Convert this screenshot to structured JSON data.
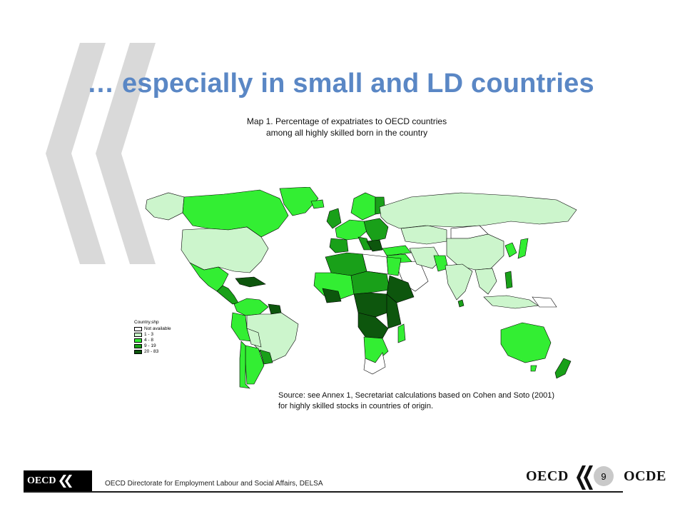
{
  "slide": {
    "title": "… especially in small and LD countries",
    "page_number": "9"
  },
  "map": {
    "title_line1": "Map 1. Percentage of expatriates to OECD countries",
    "title_line2": "among all highly skilled born in the country",
    "legend_title": "Country.shp",
    "legend": [
      {
        "label": "Not available",
        "color": "#ffffff"
      },
      {
        "label": "1 - 3",
        "color": "#ccf5cc"
      },
      {
        "label": "4 - 8",
        "color": "#33ee33"
      },
      {
        "label": "9 - 19",
        "color": "#19a019"
      },
      {
        "label": "20 - 83",
        "color": "#0d560d"
      }
    ],
    "source_line1": "Source: see Annex 1, Secretariat calculations based on Cohen and Soto (2001)",
    "source_line2": "for highly skilled stocks in countries of origin."
  },
  "footer": {
    "org_logo": "OECD",
    "directorate": "OECD Directorate for Employment Labour and Social Affairs, DELSA",
    "brand_left": "OECD",
    "brand_right": "OCDE"
  },
  "colors": {
    "title": "#5a87c5",
    "chevron": "#d6d6d6",
    "none": "#ffffff",
    "c1": "#ccf5cc",
    "c2": "#33ee33",
    "c3": "#19a019",
    "c4": "#0d560d"
  }
}
